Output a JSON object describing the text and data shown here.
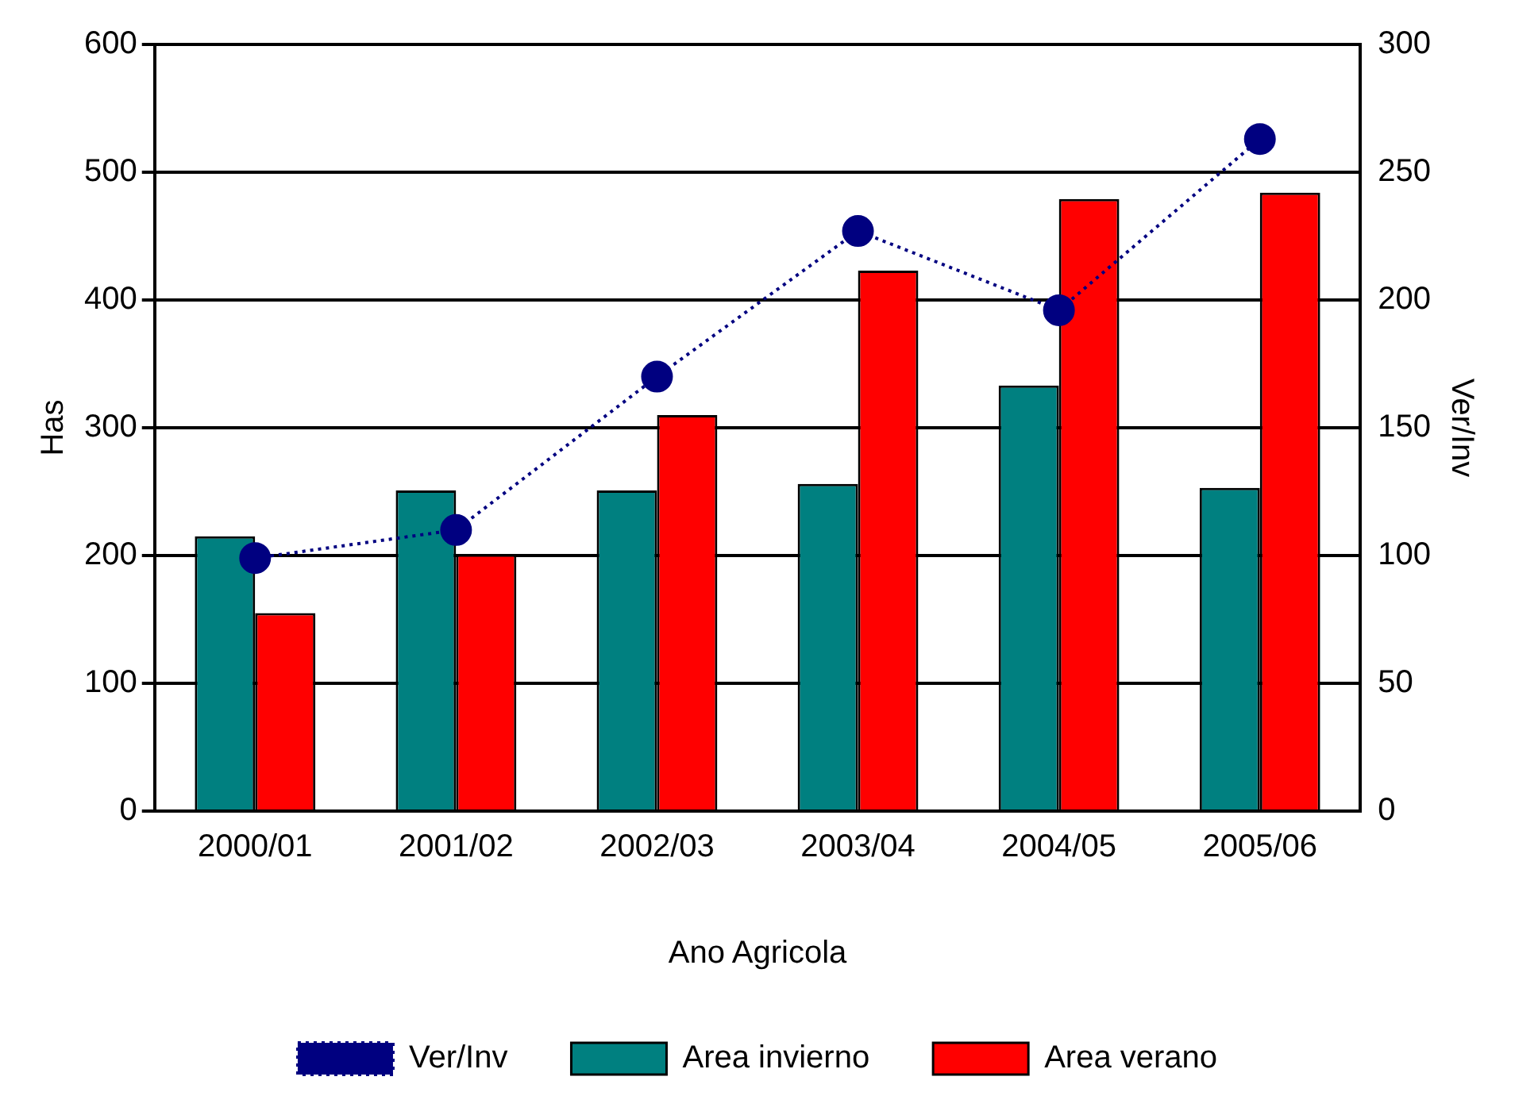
{
  "chart_data": {
    "type": "bar",
    "xlabel": "Ano Agricola",
    "ylabel": "Has",
    "y2label": "Ver/Inv",
    "categories": [
      "2000/01",
      "2001/02",
      "2002/03",
      "2003/04",
      "2004/05",
      "2005/06"
    ],
    "series": [
      {
        "name": "Area invierno",
        "color": "#008080",
        "values": [
          215,
          251,
          251,
          256,
          333,
          253
        ]
      },
      {
        "name": "Area verano",
        "color": "#ff0000",
        "values": [
          155,
          201,
          310,
          423,
          479,
          484
        ]
      },
      {
        "name": "Ver/Inv",
        "type": "line",
        "axis": "y2",
        "color": "#000080",
        "marker": "circle",
        "line_style": "dotted",
        "values": [
          99,
          110,
          170,
          227,
          196,
          263
        ]
      }
    ],
    "ylim": [
      0,
      600
    ],
    "yticks": [
      0,
      100,
      200,
      300,
      400,
      500,
      600
    ],
    "y2lim": [
      0,
      300
    ],
    "y2ticks": [
      0,
      50,
      100,
      150,
      200,
      250,
      300
    ],
    "grid": "y",
    "legend": "bottom"
  }
}
